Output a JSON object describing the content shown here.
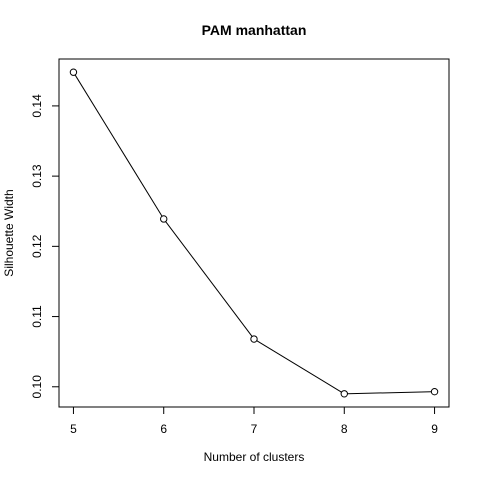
{
  "chart_data": {
    "type": "line",
    "title": "PAM manhattan",
    "xlabel": "Number of clusters",
    "ylabel": "Silhouette Width",
    "x": [
      5,
      6,
      7,
      8,
      9
    ],
    "series": [
      {
        "values": [
          0.1448,
          0.1239,
          0.1068,
          0.099,
          0.0993
        ]
      }
    ],
    "xticks": [
      5,
      6,
      7,
      8,
      9
    ],
    "xtick_labels": [
      "5",
      "6",
      "7",
      "8",
      "9"
    ],
    "yticks": [
      0.1,
      0.11,
      0.12,
      0.13,
      0.14
    ],
    "ytick_labels": [
      "0.10",
      "0.11",
      "0.12",
      "0.13",
      "0.14"
    ],
    "xlim": [
      4.84,
      9.16
    ],
    "ylim": [
      0.09712,
      0.14668
    ],
    "grid": false,
    "marker": "open-circle",
    "line_color": "#000000"
  }
}
